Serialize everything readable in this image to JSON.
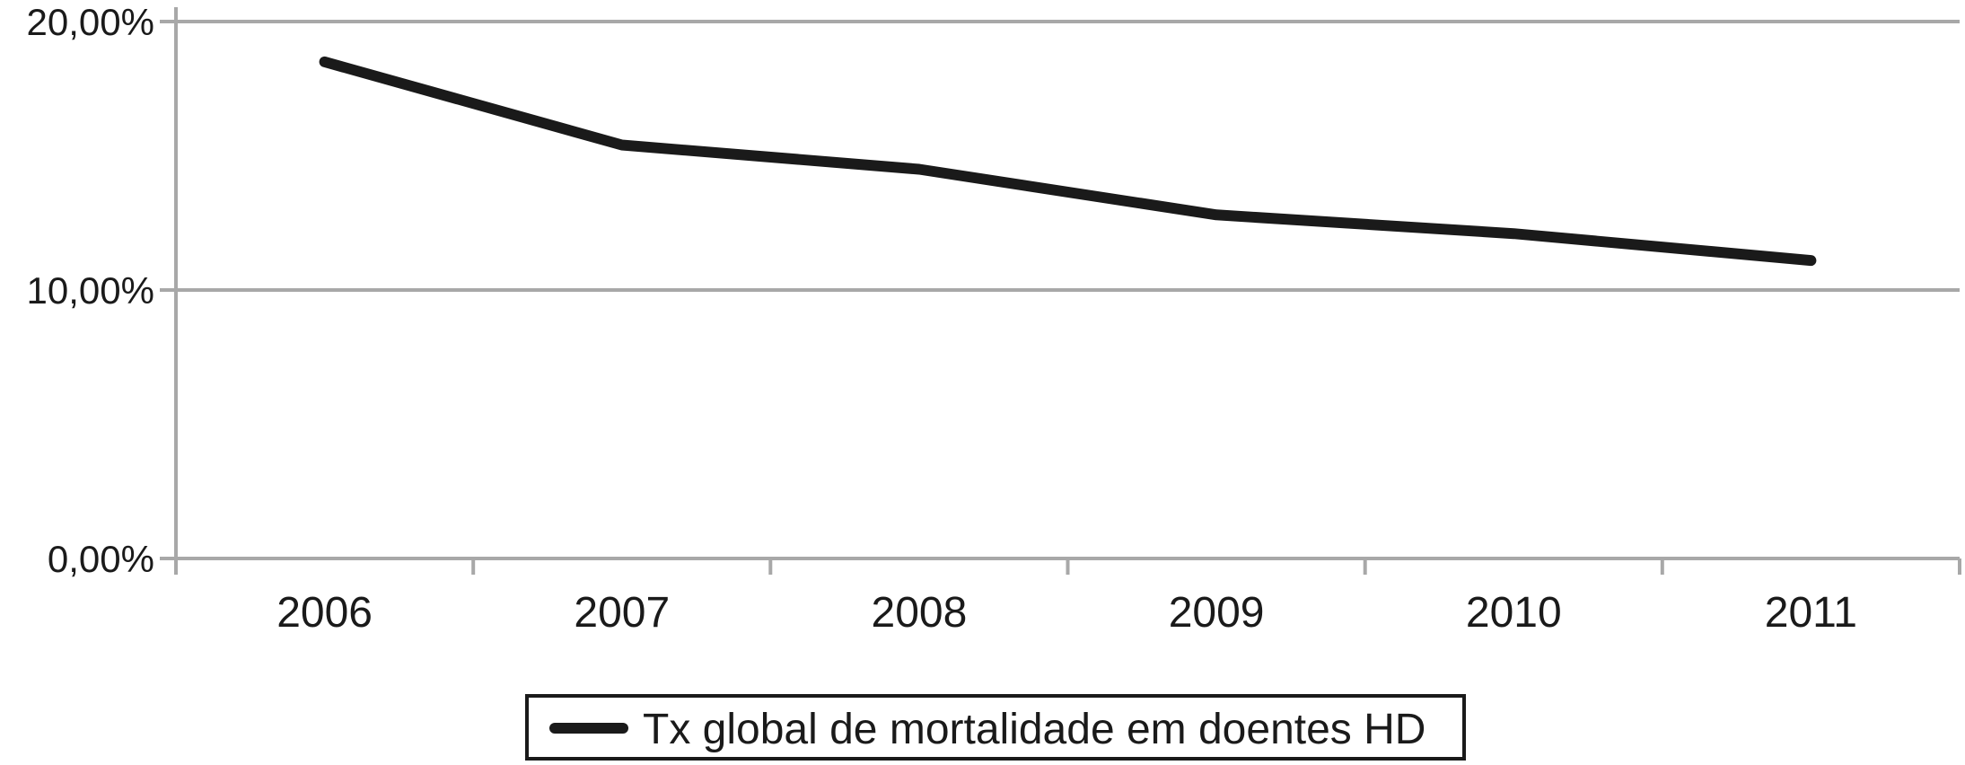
{
  "chart_data": {
    "type": "line",
    "title": "",
    "xlabel": "",
    "ylabel": "",
    "categories": [
      "2006",
      "2007",
      "2008",
      "2009",
      "2010",
      "2011"
    ],
    "series": [
      {
        "name": "Tx global de mortalidade em doentes HD",
        "values": [
          18.5,
          15.4,
          14.5,
          12.8,
          12.1,
          11.1
        ]
      }
    ],
    "ylim": [
      0,
      20
    ],
    "y_ticks": [
      {
        "label": "20,00%",
        "value": 20
      },
      {
        "label": "10,00%",
        "value": 10
      },
      {
        "label": "0,00%",
        "value": 0
      }
    ],
    "grid": "horizontal",
    "legend_position": "bottom-center",
    "line_color": "#1a1a1a",
    "grid_color": "#a8a8a8",
    "background_color": "#ffffff"
  }
}
